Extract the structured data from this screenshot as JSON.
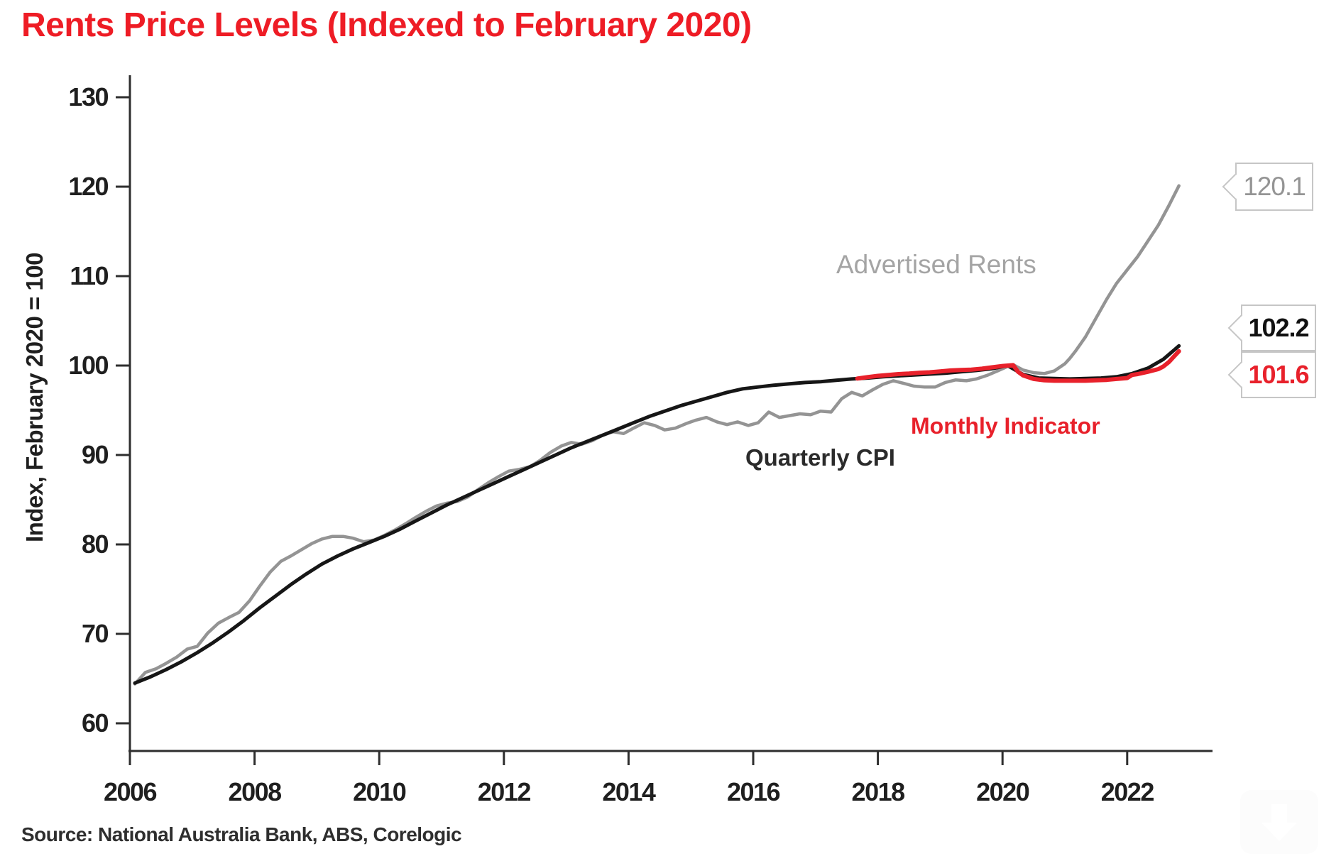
{
  "title": {
    "text": "Rents Price Levels (Indexed to February 2020)",
    "color": "#ee1c25"
  },
  "source": {
    "text": "Source: National Australia Bank, ABS, Corelogic"
  },
  "labels": {
    "advertised": {
      "text": "Advertised Rents",
      "color": "#a4a4a4"
    },
    "monthly": {
      "text": "Monthly Indicator",
      "color": "#e8212b"
    },
    "quarterly": {
      "text": "Quarterly CPI",
      "color": "#2b2b2b"
    }
  },
  "callouts": {
    "advertised": {
      "value": "120.1",
      "color": "#949494"
    },
    "quarterly": {
      "value": "102.2",
      "color": "#111111"
    },
    "monthly": {
      "value": "101.6",
      "color": "#e8212b"
    }
  },
  "watermark": {
    "icon": "download-icon"
  },
  "chart_data": {
    "type": "line",
    "title": "Rents Price Levels (Indexed to February 2020)",
    "xlabel": "",
    "ylabel": "Index, February 2020 = 100",
    "x_ticks": [
      2006,
      2008,
      2010,
      2012,
      2014,
      2016,
      2018,
      2020,
      2022
    ],
    "y_ticks": [
      60,
      70,
      80,
      90,
      100,
      110,
      120,
      130
    ],
    "xlim": [
      2005.95,
      2023.4
    ],
    "ylim": [
      56.5,
      132.5
    ],
    "grid": false,
    "legend_position": "inline-labels",
    "axis_color": "#2e2e2e",
    "series": [
      {
        "name": "Advertised Rents",
        "color": "#949494",
        "width": 4.5,
        "end_value": 120.1,
        "points": [
          [
            2006.08,
            64.4
          ],
          [
            2006.25,
            65.7
          ],
          [
            2006.42,
            66.1
          ],
          [
            2006.58,
            66.7
          ],
          [
            2006.75,
            67.4
          ],
          [
            2006.92,
            68.3
          ],
          [
            2007.08,
            68.6
          ],
          [
            2007.25,
            70.1
          ],
          [
            2007.42,
            71.2
          ],
          [
            2007.58,
            71.8
          ],
          [
            2007.75,
            72.4
          ],
          [
            2007.92,
            73.7
          ],
          [
            2008.08,
            75.3
          ],
          [
            2008.25,
            76.9
          ],
          [
            2008.42,
            78.1
          ],
          [
            2008.58,
            78.7
          ],
          [
            2008.75,
            79.4
          ],
          [
            2008.92,
            80.1
          ],
          [
            2009.08,
            80.6
          ],
          [
            2009.25,
            80.9
          ],
          [
            2009.42,
            80.9
          ],
          [
            2009.58,
            80.7
          ],
          [
            2009.75,
            80.3
          ],
          [
            2009.92,
            80.5
          ],
          [
            2010.08,
            81.0
          ],
          [
            2010.25,
            81.6
          ],
          [
            2010.42,
            82.3
          ],
          [
            2010.58,
            83.0
          ],
          [
            2010.75,
            83.7
          ],
          [
            2010.92,
            84.3
          ],
          [
            2011.08,
            84.6
          ],
          [
            2011.25,
            84.8
          ],
          [
            2011.42,
            85.3
          ],
          [
            2011.58,
            86.1
          ],
          [
            2011.75,
            86.9
          ],
          [
            2011.92,
            87.6
          ],
          [
            2012.08,
            88.2
          ],
          [
            2012.25,
            88.4
          ],
          [
            2012.42,
            88.7
          ],
          [
            2012.58,
            89.4
          ],
          [
            2012.75,
            90.3
          ],
          [
            2012.92,
            91.0
          ],
          [
            2013.08,
            91.4
          ],
          [
            2013.25,
            91.2
          ],
          [
            2013.42,
            91.6
          ],
          [
            2013.58,
            92.2
          ],
          [
            2013.75,
            92.6
          ],
          [
            2013.92,
            92.4
          ],
          [
            2014.08,
            93.0
          ],
          [
            2014.25,
            93.6
          ],
          [
            2014.42,
            93.3
          ],
          [
            2014.58,
            92.8
          ],
          [
            2014.75,
            93.0
          ],
          [
            2014.92,
            93.5
          ],
          [
            2015.08,
            93.9
          ],
          [
            2015.25,
            94.2
          ],
          [
            2015.42,
            93.7
          ],
          [
            2015.58,
            93.4
          ],
          [
            2015.75,
            93.7
          ],
          [
            2015.92,
            93.3
          ],
          [
            2016.08,
            93.6
          ],
          [
            2016.25,
            94.8
          ],
          [
            2016.42,
            94.2
          ],
          [
            2016.58,
            94.4
          ],
          [
            2016.75,
            94.6
          ],
          [
            2016.92,
            94.5
          ],
          [
            2017.08,
            94.9
          ],
          [
            2017.25,
            94.8
          ],
          [
            2017.42,
            96.3
          ],
          [
            2017.58,
            97.0
          ],
          [
            2017.75,
            96.6
          ],
          [
            2017.92,
            97.3
          ],
          [
            2018.08,
            97.9
          ],
          [
            2018.25,
            98.3
          ],
          [
            2018.42,
            98.0
          ],
          [
            2018.58,
            97.7
          ],
          [
            2018.75,
            97.6
          ],
          [
            2018.92,
            97.6
          ],
          [
            2019.08,
            98.1
          ],
          [
            2019.25,
            98.4
          ],
          [
            2019.42,
            98.3
          ],
          [
            2019.58,
            98.5
          ],
          [
            2019.75,
            98.9
          ],
          [
            2019.92,
            99.4
          ],
          [
            2020.08,
            99.9
          ],
          [
            2020.17,
            100.1
          ],
          [
            2020.33,
            99.5
          ],
          [
            2020.5,
            99.2
          ],
          [
            2020.67,
            99.1
          ],
          [
            2020.83,
            99.4
          ],
          [
            2021.0,
            100.2
          ],
          [
            2021.08,
            100.8
          ],
          [
            2021.17,
            101.6
          ],
          [
            2021.33,
            103.2
          ],
          [
            2021.5,
            105.3
          ],
          [
            2021.67,
            107.4
          ],
          [
            2021.83,
            109.2
          ],
          [
            2022.0,
            110.7
          ],
          [
            2022.17,
            112.2
          ],
          [
            2022.33,
            113.9
          ],
          [
            2022.5,
            115.7
          ],
          [
            2022.67,
            117.9
          ],
          [
            2022.83,
            120.1
          ]
        ]
      },
      {
        "name": "Quarterly CPI",
        "color": "#161616",
        "width": 5,
        "end_value": 102.2,
        "points": [
          [
            2006.08,
            64.5
          ],
          [
            2006.33,
            65.2
          ],
          [
            2006.58,
            66.0
          ],
          [
            2006.83,
            66.9
          ],
          [
            2007.08,
            67.9
          ],
          [
            2007.33,
            69.0
          ],
          [
            2007.58,
            70.2
          ],
          [
            2007.83,
            71.5
          ],
          [
            2008.08,
            72.9
          ],
          [
            2008.33,
            74.2
          ],
          [
            2008.58,
            75.5
          ],
          [
            2008.83,
            76.7
          ],
          [
            2009.08,
            77.8
          ],
          [
            2009.33,
            78.7
          ],
          [
            2009.58,
            79.5
          ],
          [
            2009.83,
            80.2
          ],
          [
            2010.08,
            80.9
          ],
          [
            2010.33,
            81.7
          ],
          [
            2010.58,
            82.6
          ],
          [
            2010.83,
            83.5
          ],
          [
            2011.08,
            84.4
          ],
          [
            2011.33,
            85.2
          ],
          [
            2011.58,
            86.0
          ],
          [
            2011.83,
            86.8
          ],
          [
            2012.08,
            87.6
          ],
          [
            2012.33,
            88.4
          ],
          [
            2012.58,
            89.2
          ],
          [
            2012.83,
            90.0
          ],
          [
            2013.08,
            90.8
          ],
          [
            2013.33,
            91.5
          ],
          [
            2013.58,
            92.2
          ],
          [
            2013.83,
            92.9
          ],
          [
            2014.08,
            93.6
          ],
          [
            2014.33,
            94.3
          ],
          [
            2014.58,
            94.9
          ],
          [
            2014.83,
            95.5
          ],
          [
            2015.08,
            96.0
          ],
          [
            2015.33,
            96.5
          ],
          [
            2015.58,
            97.0
          ],
          [
            2015.83,
            97.4
          ],
          [
            2016.08,
            97.6
          ],
          [
            2016.33,
            97.8
          ],
          [
            2016.58,
            97.95
          ],
          [
            2016.83,
            98.1
          ],
          [
            2017.08,
            98.2
          ],
          [
            2017.33,
            98.35
          ],
          [
            2017.58,
            98.5
          ],
          [
            2017.83,
            98.6
          ],
          [
            2018.08,
            98.75
          ],
          [
            2018.33,
            98.85
          ],
          [
            2018.58,
            98.95
          ],
          [
            2018.83,
            99.05
          ],
          [
            2019.08,
            99.15
          ],
          [
            2019.33,
            99.3
          ],
          [
            2019.58,
            99.45
          ],
          [
            2019.83,
            99.65
          ],
          [
            2020.08,
            100.0
          ],
          [
            2020.33,
            99.0
          ],
          [
            2020.58,
            98.6
          ],
          [
            2020.83,
            98.55
          ],
          [
            2021.08,
            98.5
          ],
          [
            2021.33,
            98.55
          ],
          [
            2021.58,
            98.6
          ],
          [
            2021.83,
            98.75
          ],
          [
            2022.08,
            99.1
          ],
          [
            2022.33,
            99.7
          ],
          [
            2022.58,
            100.7
          ],
          [
            2022.83,
            102.2
          ]
        ]
      },
      {
        "name": "Monthly Indicator",
        "color": "#e8212b",
        "width": 6,
        "end_value": 101.6,
        "points": [
          [
            2017.67,
            98.55
          ],
          [
            2017.83,
            98.7
          ],
          [
            2018.0,
            98.85
          ],
          [
            2018.17,
            98.95
          ],
          [
            2018.33,
            99.05
          ],
          [
            2018.5,
            99.1
          ],
          [
            2018.67,
            99.2
          ],
          [
            2018.83,
            99.25
          ],
          [
            2019.0,
            99.35
          ],
          [
            2019.17,
            99.45
          ],
          [
            2019.33,
            99.5
          ],
          [
            2019.5,
            99.55
          ],
          [
            2019.67,
            99.65
          ],
          [
            2019.83,
            99.8
          ],
          [
            2020.0,
            99.95
          ],
          [
            2020.17,
            100.05
          ],
          [
            2020.25,
            99.3
          ],
          [
            2020.33,
            98.9
          ],
          [
            2020.5,
            98.5
          ],
          [
            2020.67,
            98.35
          ],
          [
            2020.83,
            98.3
          ],
          [
            2021.0,
            98.3
          ],
          [
            2021.17,
            98.3
          ],
          [
            2021.33,
            98.3
          ],
          [
            2021.5,
            98.35
          ],
          [
            2021.67,
            98.4
          ],
          [
            2021.83,
            98.5
          ],
          [
            2022.0,
            98.6
          ],
          [
            2022.08,
            98.95
          ],
          [
            2022.17,
            99.05
          ],
          [
            2022.33,
            99.3
          ],
          [
            2022.5,
            99.6
          ],
          [
            2022.58,
            99.9
          ],
          [
            2022.67,
            100.4
          ],
          [
            2022.75,
            101.0
          ],
          [
            2022.83,
            101.6
          ]
        ]
      }
    ]
  }
}
